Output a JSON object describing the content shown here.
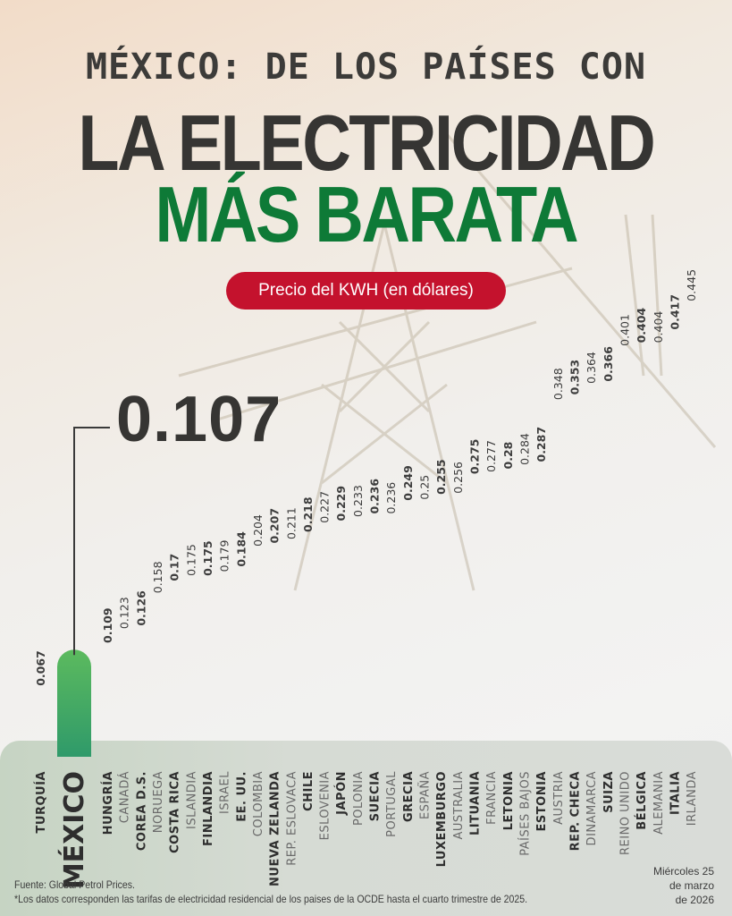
{
  "header": {
    "line1": "MÉXICO: DE LOS PAÍSES CON",
    "line2": "LA ELECTRICIDAD",
    "line3": "MÁS BARATA",
    "pill": "Precio del KWH (en dólares)",
    "highlight_value": "0.107"
  },
  "colors": {
    "title_dark": "#363533",
    "title_green": "#0e7a37",
    "pill_red": "#c4122d",
    "bar": "#4d5a8a",
    "mexico_bar": "#4caf5a"
  },
  "chart_data": {
    "type": "bar",
    "orientation": "vertical",
    "title": "Precio del KWH (en dólares)",
    "highlight": "MÉXICO",
    "categories": [
      "TURQUÍA",
      "MÉXICO",
      "HUNGRÍA",
      "CANADÁ",
      "COREA D.S.",
      "NORUEGA",
      "COSTA RICA",
      "ISLANDIA",
      "FINLANDIA",
      "ISRAEL",
      "EE. UU.",
      "COLOMBIA",
      "NUEVA ZELANDA",
      "REP. ESLOVACA",
      "CHILE",
      "ESLOVENIA",
      "JAPÓN",
      "POLONIA",
      "SUECIA",
      "PORTUGAL",
      "GRECIA",
      "ESPAÑA",
      "LUXEMBURGO",
      "AUSTRALIA",
      "LITUANIA",
      "FRANCIA",
      "LETONIA",
      "PAÍSES BAJOS",
      "ESTONIA",
      "AUSTRIA",
      "REP. CHECA",
      "DINAMARCA",
      "SUIZA",
      "REINO UNIDO",
      "BÉLGICA",
      "ALEMANIA",
      "ITALIA",
      "IRLANDA"
    ],
    "values": [
      0.067,
      0.107,
      0.109,
      0.123,
      0.126,
      0.158,
      0.17,
      0.175,
      0.175,
      0.179,
      0.184,
      0.204,
      0.207,
      0.211,
      0.218,
      0.227,
      0.229,
      0.233,
      0.236,
      0.236,
      0.249,
      0.25,
      0.255,
      0.256,
      0.275,
      0.277,
      0.28,
      0.284,
      0.287,
      0.348,
      0.353,
      0.364,
      0.366,
      0.401,
      0.404,
      0.404,
      0.417,
      0.445
    ],
    "labels": [
      "0.067",
      "",
      "0.109",
      "0.123",
      "0.126",
      "0.158",
      "0.17",
      "0.175",
      "0.175",
      "0.179",
      "0.184",
      "0.204",
      "0.207",
      "0.211",
      "0.218",
      "0.227",
      "0.229",
      "0.233",
      "0.236",
      "0.236",
      "0.249",
      "0.25",
      "0.255",
      "0.256",
      "0.275",
      "0.277",
      "0.28",
      "0.284",
      "0.287",
      "0.348",
      "0.353",
      "0.364",
      "0.366",
      "0.401",
      "0.404",
      "0.404",
      "0.417",
      "0.445"
    ]
  },
  "footer": {
    "source": "Fuente: Global Petrol Prices.",
    "note": "*Los datos corresponden las tarifas de electricidad residencial de los paises de la OCDE hasta el cuarto trimestre de 2025.",
    "date_line1": "Miércoles 25",
    "date_line2": "de marzo",
    "date_line3": "de 2026"
  }
}
